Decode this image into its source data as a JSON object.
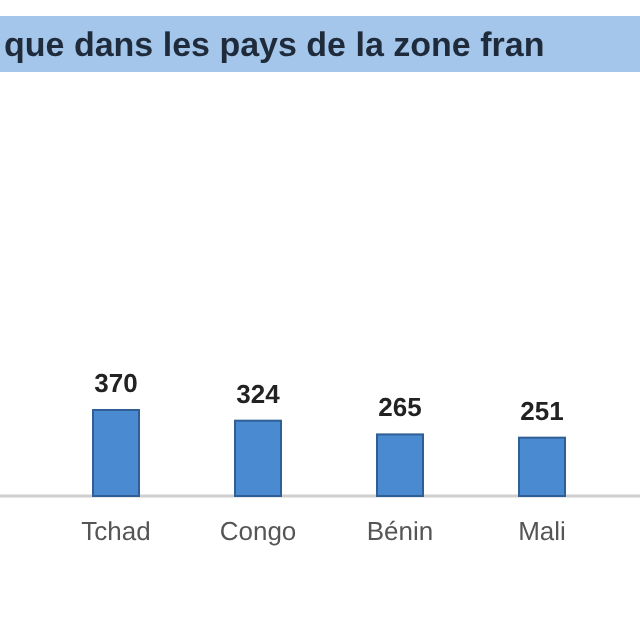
{
  "chart_data": {
    "type": "bar",
    "title": "que dans les pays de la zone fran",
    "categories": [
      "Tchad",
      "Congo",
      "Bénin",
      "Mali"
    ],
    "values": [
      370,
      324,
      265,
      251
    ],
    "color": "#4a8ad0",
    "data_labels": true
  }
}
